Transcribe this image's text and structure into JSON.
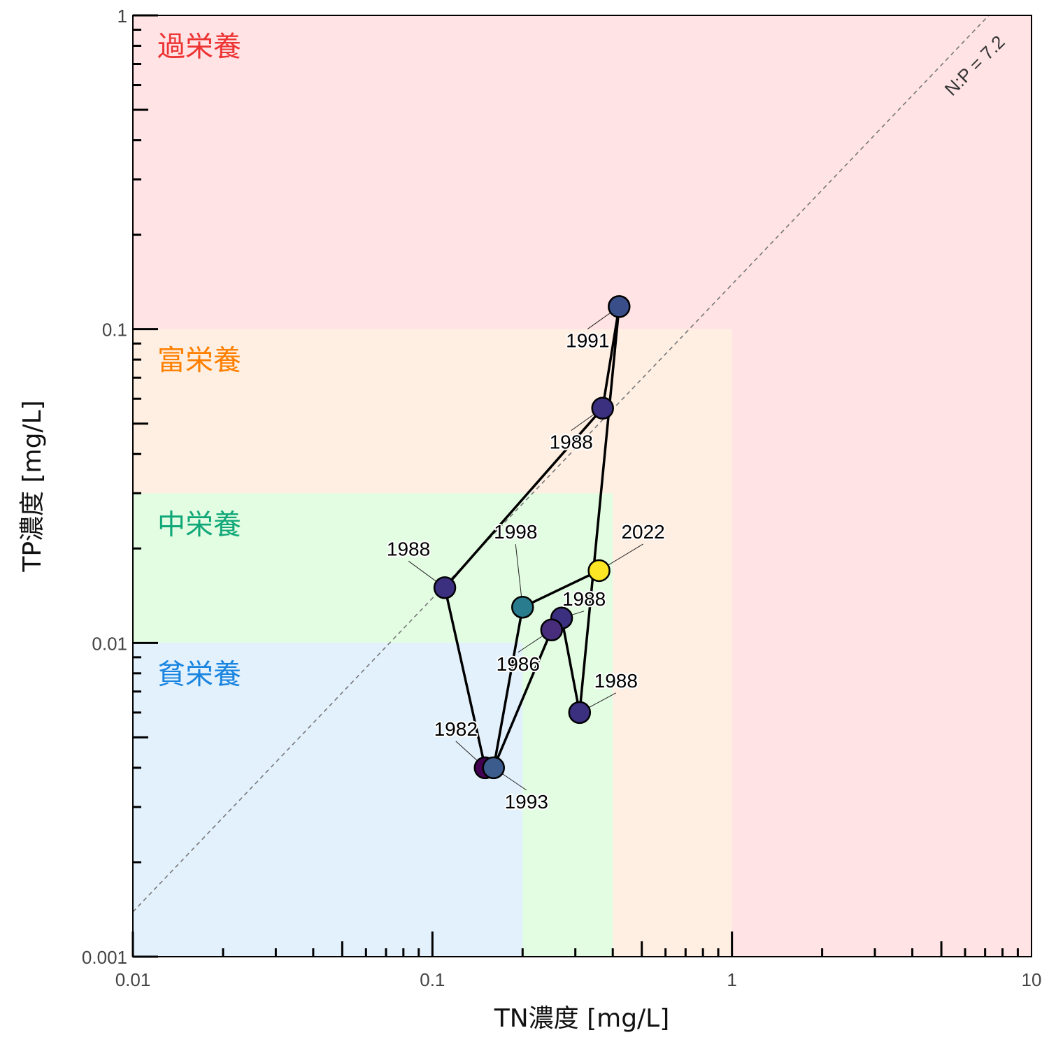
{
  "chart_data": {
    "type": "scatter",
    "title": "",
    "xlabel": "TN濃度 [mg/L]",
    "ylabel": "TP濃度 [mg/L]",
    "xscale": "log",
    "yscale": "log",
    "xlim": [
      0.01,
      10
    ],
    "ylim": [
      0.001,
      1
    ],
    "x_tick_labels": [
      "0.01",
      "0.1",
      "1",
      "10"
    ],
    "y_tick_labels": [
      "0.001",
      "0.01",
      "0.1",
      "1"
    ],
    "grid": false,
    "zones": [
      {
        "label": "過栄養",
        "label_color": "#ee3333",
        "fill": "#ffe3e5",
        "tn_max": 10,
        "tp_max": 1
      },
      {
        "label": "富栄養",
        "label_color": "#ff8000",
        "fill": "#ffefe3",
        "tn_max": 1,
        "tp_max": 0.1
      },
      {
        "label": "中栄養",
        "label_color": "#10a878",
        "fill": "#e3fde3",
        "tn_max": 0.4,
        "tp_max": 0.03
      },
      {
        "label": "貧栄養",
        "label_color": "#1a85e0",
        "fill": "#e3f1fd",
        "tn_max": 0.2,
        "tp_max": 0.01
      }
    ],
    "ratio_line": {
      "label": "N:P = 7.2",
      "ratio": 7.2,
      "style": "dashed",
      "color": "#777777"
    },
    "series": [
      {
        "points": [
          {
            "year": "1982",
            "tn": 0.15,
            "tp": 0.004,
            "color": "#440154"
          },
          {
            "year": "1986",
            "tn": 0.25,
            "tp": 0.011,
            "color": "#472d7b"
          },
          {
            "year": "1988",
            "tn": 0.11,
            "tp": 0.015,
            "color": "#3b2f80"
          },
          {
            "year": "1988",
            "tn": 0.37,
            "tp": 0.056,
            "color": "#3b2f80"
          },
          {
            "year": "1988",
            "tn": 0.27,
            "tp": 0.012,
            "color": "#3b2f80"
          },
          {
            "year": "1988",
            "tn": 0.31,
            "tp": 0.006,
            "color": "#3b2f80"
          },
          {
            "year": "1991",
            "tn": 0.42,
            "tp": 0.118,
            "color": "#3a4f8a"
          },
          {
            "year": "1993",
            "tn": 0.16,
            "tp": 0.004,
            "color": "#3b5c8c"
          },
          {
            "year": "1998",
            "tn": 0.2,
            "tp": 0.013,
            "color": "#287c8e"
          },
          {
            "year": "2022",
            "tn": 0.36,
            "tp": 0.017,
            "color": "#fde725"
          }
        ]
      }
    ],
    "path_order": [
      0,
      2,
      3,
      6,
      5,
      4,
      1,
      7,
      8,
      9
    ]
  }
}
